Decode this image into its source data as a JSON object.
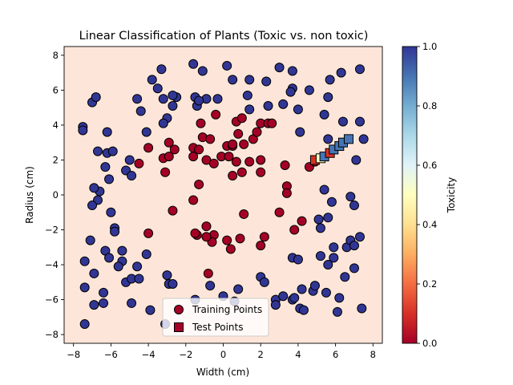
{
  "chart_data": {
    "type": "scatter",
    "title": "Linear Classification of Plants (Toxic vs. non toxic)",
    "xlabel": "Width (cm)",
    "ylabel": "Radius (cm)",
    "xlim": [
      -8.5,
      8.5
    ],
    "ylim": [
      -8.5,
      8.5
    ],
    "xticks": [
      -8,
      -6,
      -4,
      -2,
      0,
      2,
      4,
      6,
      8
    ],
    "yticks": [
      -8,
      -6,
      -4,
      -2,
      0,
      2,
      4,
      6,
      8
    ],
    "xtick_labels": [
      "−8",
      "−6",
      "−4",
      "−2",
      "0",
      "2",
      "4",
      "6",
      "8"
    ],
    "ytick_labels": [
      "−8",
      "−6",
      "−4",
      "−2",
      "0",
      "2",
      "4",
      "6",
      "8"
    ],
    "background_color": "#fde6d9",
    "grid": false,
    "legend": {
      "placement": "lower center",
      "entries": [
        "Training Points",
        "Test Points"
      ]
    },
    "colorbar": {
      "label": "Toxicity",
      "range": [
        0.0,
        1.0
      ],
      "ticks": [
        0.0,
        0.2,
        0.4,
        0.6,
        0.8,
        1.0
      ],
      "tick_labels": [
        "0.0",
        "0.2",
        "0.4",
        "0.6",
        "0.8",
        "1.0"
      ],
      "colormap": "RdYlBu"
    },
    "colors": {
      "toxic": "#a50026",
      "non_toxic": "#313695"
    },
    "series": [
      {
        "name": "Training Points",
        "marker": "circle",
        "points": [
          {
            "x": -7.5,
            "y": 3.9,
            "c": 1
          },
          {
            "x": -7.5,
            "y": 3.7,
            "c": 1
          },
          {
            "x": -7.0,
            "y": 5.3,
            "c": 1
          },
          {
            "x": -6.8,
            "y": 5.6,
            "c": 1
          },
          {
            "x": -6.7,
            "y": 2.5,
            "c": 1
          },
          {
            "x": -6.2,
            "y": 3.6,
            "c": 1
          },
          {
            "x": -6.2,
            "y": 2.4,
            "c": 1
          },
          {
            "x": -5.9,
            "y": 2.5,
            "c": 1
          },
          {
            "x": -6.3,
            "y": 1.6,
            "c": 1
          },
          {
            "x": -6.1,
            "y": 0.9,
            "c": 1
          },
          {
            "x": -5.2,
            "y": 1.4,
            "c": 1
          },
          {
            "x": -5.0,
            "y": 2.0,
            "c": 1
          },
          {
            "x": -4.9,
            "y": 1.1,
            "c": 1
          },
          {
            "x": -6.6,
            "y": 0.2,
            "c": 1
          },
          {
            "x": -6.9,
            "y": 0.4,
            "c": 1
          },
          {
            "x": -6.7,
            "y": -0.3,
            "c": 1
          },
          {
            "x": -7.0,
            "y": -0.6,
            "c": 1
          },
          {
            "x": -6.0,
            "y": -1.0,
            "c": 1
          },
          {
            "x": -5.8,
            "y": -1.9,
            "c": 1
          },
          {
            "x": -5.8,
            "y": -2.1,
            "c": 1
          },
          {
            "x": -7.1,
            "y": -2.6,
            "c": 1
          },
          {
            "x": -6.3,
            "y": -3.2,
            "c": 1
          },
          {
            "x": -5.4,
            "y": -3.2,
            "c": 1
          },
          {
            "x": -6.1,
            "y": -3.6,
            "c": 1
          },
          {
            "x": -5.4,
            "y": -3.8,
            "c": 1
          },
          {
            "x": -5.6,
            "y": -4.1,
            "c": 1
          },
          {
            "x": -7.4,
            "y": -3.8,
            "c": 1
          },
          {
            "x": -6.9,
            "y": -4.5,
            "c": 1
          },
          {
            "x": -7.4,
            "y": -5.3,
            "c": 1
          },
          {
            "x": -6.4,
            "y": -5.6,
            "c": 1
          },
          {
            "x": -6.9,
            "y": -6.3,
            "c": 1
          },
          {
            "x": -6.4,
            "y": -6.2,
            "c": 1
          },
          {
            "x": -7.4,
            "y": -7.4,
            "c": 1
          },
          {
            "x": -5.2,
            "y": -5.0,
            "c": 1
          },
          {
            "x": -4.9,
            "y": -4.8,
            "c": 1
          },
          {
            "x": -4.9,
            "y": -6.2,
            "c": 1
          },
          {
            "x": -4.5,
            "y": -4.8,
            "c": 1
          },
          {
            "x": -4.6,
            "y": -4.1,
            "c": 1
          },
          {
            "x": -4.1,
            "y": -3.4,
            "c": 1
          },
          {
            "x": -3.9,
            "y": -6.6,
            "c": 1
          },
          {
            "x": -3.1,
            "y": -7.4,
            "c": 1
          },
          {
            "x": -3.0,
            "y": -4.6,
            "c": 1
          },
          {
            "x": -2.9,
            "y": -5.1,
            "c": 1
          },
          {
            "x": -2.7,
            "y": -5.1,
            "c": 1
          },
          {
            "x": -1.5,
            "y": -6.0,
            "c": 1
          },
          {
            "x": -0.7,
            "y": -5.2,
            "c": 1
          },
          {
            "x": 0.0,
            "y": -5.8,
            "c": 1
          },
          {
            "x": 0.6,
            "y": -6.1,
            "c": 1
          },
          {
            "x": 0.8,
            "y": -5.4,
            "c": 1
          },
          {
            "x": 2.0,
            "y": -4.7,
            "c": 1
          },
          {
            "x": 2.2,
            "y": -5.0,
            "c": 1
          },
          {
            "x": 2.8,
            "y": -6.0,
            "c": 1
          },
          {
            "x": 2.8,
            "y": -6.3,
            "c": 1
          },
          {
            "x": 3.2,
            "y": -5.8,
            "c": 1
          },
          {
            "x": 3.7,
            "y": -6.0,
            "c": 1
          },
          {
            "x": 3.8,
            "y": -5.9,
            "c": 1
          },
          {
            "x": 4.1,
            "y": -6.5,
            "c": 1
          },
          {
            "x": 4.3,
            "y": -6.6,
            "c": 1
          },
          {
            "x": 4.2,
            "y": -5.4,
            "c": 1
          },
          {
            "x": 4.8,
            "y": -5.5,
            "c": 1
          },
          {
            "x": 4.9,
            "y": -5.2,
            "c": 1
          },
          {
            "x": 5.5,
            "y": -5.6,
            "c": 1
          },
          {
            "x": 6.1,
            "y": -6.7,
            "c": 1
          },
          {
            "x": 6.2,
            "y": -5.9,
            "c": 1
          },
          {
            "x": 6.5,
            "y": -4.7,
            "c": 1
          },
          {
            "x": 7.0,
            "y": -4.2,
            "c": 1
          },
          {
            "x": 7.4,
            "y": -6.5,
            "c": 1
          },
          {
            "x": 3.7,
            "y": -3.6,
            "c": 1
          },
          {
            "x": 4.0,
            "y": -3.7,
            "c": 1
          },
          {
            "x": 5.2,
            "y": -3.5,
            "c": 1
          },
          {
            "x": 5.6,
            "y": -4.0,
            "c": 1
          },
          {
            "x": 5.9,
            "y": -3.6,
            "c": 1
          },
          {
            "x": 5.9,
            "y": -3.0,
            "c": 1
          },
          {
            "x": 6.6,
            "y": -3.0,
            "c": 1
          },
          {
            "x": 6.8,
            "y": -2.6,
            "c": 1
          },
          {
            "x": 7.3,
            "y": -2.4,
            "c": 1
          },
          {
            "x": 7.0,
            "y": -2.9,
            "c": 1
          },
          {
            "x": 5.1,
            "y": -1.4,
            "c": 1
          },
          {
            "x": 5.2,
            "y": -1.9,
            "c": 1
          },
          {
            "x": 5.6,
            "y": -1.3,
            "c": 1
          },
          {
            "x": 5.8,
            "y": -0.4,
            "c": 1
          },
          {
            "x": 5.4,
            "y": 0.3,
            "c": 1
          },
          {
            "x": 6.8,
            "y": -0.1,
            "c": 1
          },
          {
            "x": 7.0,
            "y": -0.6,
            "c": 1
          },
          {
            "x": 7.1,
            "y": 2.0,
            "c": 1
          },
          {
            "x": 7.3,
            "y": 4.2,
            "c": 1
          },
          {
            "x": 7.5,
            "y": 3.2,
            "c": 1
          },
          {
            "x": 6.4,
            "y": 4.2,
            "c": 1
          },
          {
            "x": 5.4,
            "y": 4.6,
            "c": 1
          },
          {
            "x": 5.6,
            "y": 3.2,
            "c": 1
          },
          {
            "x": 5.6,
            "y": 5.6,
            "c": 1
          },
          {
            "x": 5.7,
            "y": 6.6,
            "c": 1
          },
          {
            "x": 6.3,
            "y": 7.0,
            "c": 1
          },
          {
            "x": 7.3,
            "y": 7.2,
            "c": 1
          },
          {
            "x": 4.6,
            "y": 6.0,
            "c": 1
          },
          {
            "x": 4.0,
            "y": 4.9,
            "c": 1
          },
          {
            "x": 4.1,
            "y": 3.6,
            "c": 1
          },
          {
            "x": 3.7,
            "y": 6.1,
            "c": 1
          },
          {
            "x": 3.6,
            "y": 5.9,
            "c": 1
          },
          {
            "x": 3.7,
            "y": 7.1,
            "c": 1
          },
          {
            "x": 3.2,
            "y": 5.2,
            "c": 1
          },
          {
            "x": 3.0,
            "y": 7.3,
            "c": 1
          },
          {
            "x": 2.3,
            "y": 6.5,
            "c": 1
          },
          {
            "x": 2.4,
            "y": 5.1,
            "c": 1
          },
          {
            "x": 1.4,
            "y": 6.6,
            "c": 1
          },
          {
            "x": 1.3,
            "y": 5.7,
            "c": 1
          },
          {
            "x": 1.4,
            "y": 4.9,
            "c": 1
          },
          {
            "x": 0.5,
            "y": 6.6,
            "c": 1
          },
          {
            "x": 0.2,
            "y": 7.4,
            "c": 1
          },
          {
            "x": -0.3,
            "y": 5.5,
            "c": 1
          },
          {
            "x": -0.9,
            "y": 5.5,
            "c": 1
          },
          {
            "x": -1.1,
            "y": 7.1,
            "c": 1
          },
          {
            "x": -1.6,
            "y": 7.5,
            "c": 1
          },
          {
            "x": -1.5,
            "y": 5.6,
            "c": 1
          },
          {
            "x": -1.4,
            "y": 5.1,
            "c": 1
          },
          {
            "x": -1.3,
            "y": 5.4,
            "c": 1
          },
          {
            "x": -2.5,
            "y": 5.6,
            "c": 1
          },
          {
            "x": -2.7,
            "y": 5.7,
            "c": 1
          },
          {
            "x": -2.7,
            "y": 5.1,
            "c": 1
          },
          {
            "x": -3.2,
            "y": 5.5,
            "c": 1
          },
          {
            "x": -3.5,
            "y": 6.1,
            "c": 1
          },
          {
            "x": -3.3,
            "y": 7.2,
            "c": 1
          },
          {
            "x": -3.8,
            "y": 6.6,
            "c": 1
          },
          {
            "x": -4.6,
            "y": 5.5,
            "c": 1
          },
          {
            "x": -4.4,
            "y": 4.8,
            "c": 1
          },
          {
            "x": -3.0,
            "y": 4.4,
            "c": 1
          },
          {
            "x": -3.2,
            "y": 4.1,
            "c": 1
          },
          {
            "x": -4.1,
            "y": 3.6,
            "c": 1
          },
          {
            "x": -4.0,
            "y": 2.7,
            "c": 0
          },
          {
            "x": -4.5,
            "y": 1.8,
            "c": 0
          },
          {
            "x": -3.2,
            "y": 2.1,
            "c": 0
          },
          {
            "x": -3.1,
            "y": 1.3,
            "c": 0
          },
          {
            "x": -2.9,
            "y": 2.2,
            "c": 0
          },
          {
            "x": -2.9,
            "y": 3.0,
            "c": 0
          },
          {
            "x": -2.6,
            "y": 2.6,
            "c": 0
          },
          {
            "x": -2.7,
            "y": -0.9,
            "c": 0
          },
          {
            "x": -1.6,
            "y": 2.7,
            "c": 0
          },
          {
            "x": -1.6,
            "y": 2.2,
            "c": 0
          },
          {
            "x": -1.3,
            "y": 2.6,
            "c": 0
          },
          {
            "x": -1.1,
            "y": 3.3,
            "c": 0
          },
          {
            "x": -1.2,
            "y": 4.1,
            "c": 0
          },
          {
            "x": -0.9,
            "y": 2.0,
            "c": 0
          },
          {
            "x": -0.7,
            "y": 3.2,
            "c": 0
          },
          {
            "x": -0.5,
            "y": 1.8,
            "c": 0
          },
          {
            "x": -0.4,
            "y": 4.6,
            "c": 0
          },
          {
            "x": -1.3,
            "y": 0.6,
            "c": 0
          },
          {
            "x": -1.6,
            "y": -0.3,
            "c": 0
          },
          {
            "x": -0.1,
            "y": 2.2,
            "c": 0
          },
          {
            "x": 0.2,
            "y": 2.8,
            "c": 0
          },
          {
            "x": 0.3,
            "y": 2.2,
            "c": 0
          },
          {
            "x": 0.5,
            "y": 2.8,
            "c": 0
          },
          {
            "x": 0.5,
            "y": 2.9,
            "c": 0
          },
          {
            "x": 0.7,
            "y": 1.9,
            "c": 0
          },
          {
            "x": 0.5,
            "y": 1.1,
            "c": 0
          },
          {
            "x": 0.8,
            "y": 3.5,
            "c": 0
          },
          {
            "x": 0.7,
            "y": 4.2,
            "c": 0
          },
          {
            "x": 1.0,
            "y": 4.4,
            "c": 0
          },
          {
            "x": 1.0,
            "y": 1.3,
            "c": 0
          },
          {
            "x": 1.1,
            "y": 2.9,
            "c": 0
          },
          {
            "x": 1.4,
            "y": 1.9,
            "c": 0
          },
          {
            "x": 1.6,
            "y": 3.2,
            "c": 0
          },
          {
            "x": 1.8,
            "y": 3.6,
            "c": 0
          },
          {
            "x": 2.0,
            "y": 4.1,
            "c": 0
          },
          {
            "x": 2.0,
            "y": 2.0,
            "c": 0
          },
          {
            "x": 2.0,
            "y": 1.3,
            "c": 0
          },
          {
            "x": 2.4,
            "y": 4.1,
            "c": 0
          },
          {
            "x": 2.6,
            "y": 4.1,
            "c": 0
          },
          {
            "x": 3.3,
            "y": 1.7,
            "c": 0
          },
          {
            "x": 3.4,
            "y": 0.5,
            "c": 0
          },
          {
            "x": 3.4,
            "y": 0.1,
            "c": 0
          },
          {
            "x": 4.6,
            "y": 1.6,
            "c": 0
          },
          {
            "x": 4.9,
            "y": 1.9,
            "c": 0
          },
          {
            "x": 1.1,
            "y": -1.1,
            "c": 0
          },
          {
            "x": 3.0,
            "y": -1.0,
            "c": 0
          },
          {
            "x": 4.2,
            "y": -1.5,
            "c": 0
          },
          {
            "x": 3.8,
            "y": -2.0,
            "c": 0
          },
          {
            "x": 2.2,
            "y": -2.4,
            "c": 0
          },
          {
            "x": 2.0,
            "y": -2.9,
            "c": 0
          },
          {
            "x": 0.9,
            "y": -2.5,
            "c": 0
          },
          {
            "x": 0.2,
            "y": -2.6,
            "c": 0
          },
          {
            "x": 0.4,
            "y": -3.1,
            "c": 0
          },
          {
            "x": -0.5,
            "y": -2.3,
            "c": 0
          },
          {
            "x": -0.6,
            "y": -2.7,
            "c": 0
          },
          {
            "x": -0.9,
            "y": -2.4,
            "c": 0
          },
          {
            "x": -0.9,
            "y": -1.8,
            "c": 0
          },
          {
            "x": -1.4,
            "y": -2.3,
            "c": 0
          },
          {
            "x": -1.5,
            "y": -2.2,
            "c": 0
          },
          {
            "x": -0.8,
            "y": -4.5,
            "c": 0
          },
          {
            "x": -4.0,
            "y": -2.2,
            "c": 0
          }
        ]
      },
      {
        "name": "Test Points",
        "marker": "square",
        "points": [
          {
            "x": 4.9,
            "y": 2.0,
            "c": 0.1
          },
          {
            "x": 5.2,
            "y": 2.1,
            "c": 0.5
          },
          {
            "x": 5.4,
            "y": 2.2,
            "c": 0.9
          },
          {
            "x": 5.7,
            "y": 2.4,
            "c": 0.1
          },
          {
            "x": 5.9,
            "y": 2.6,
            "c": 0.9
          },
          {
            "x": 6.2,
            "y": 2.8,
            "c": 0.9
          },
          {
            "x": 6.4,
            "y": 3.0,
            "c": 0.9
          },
          {
            "x": 6.7,
            "y": 3.2,
            "c": 0.9
          }
        ]
      }
    ]
  }
}
